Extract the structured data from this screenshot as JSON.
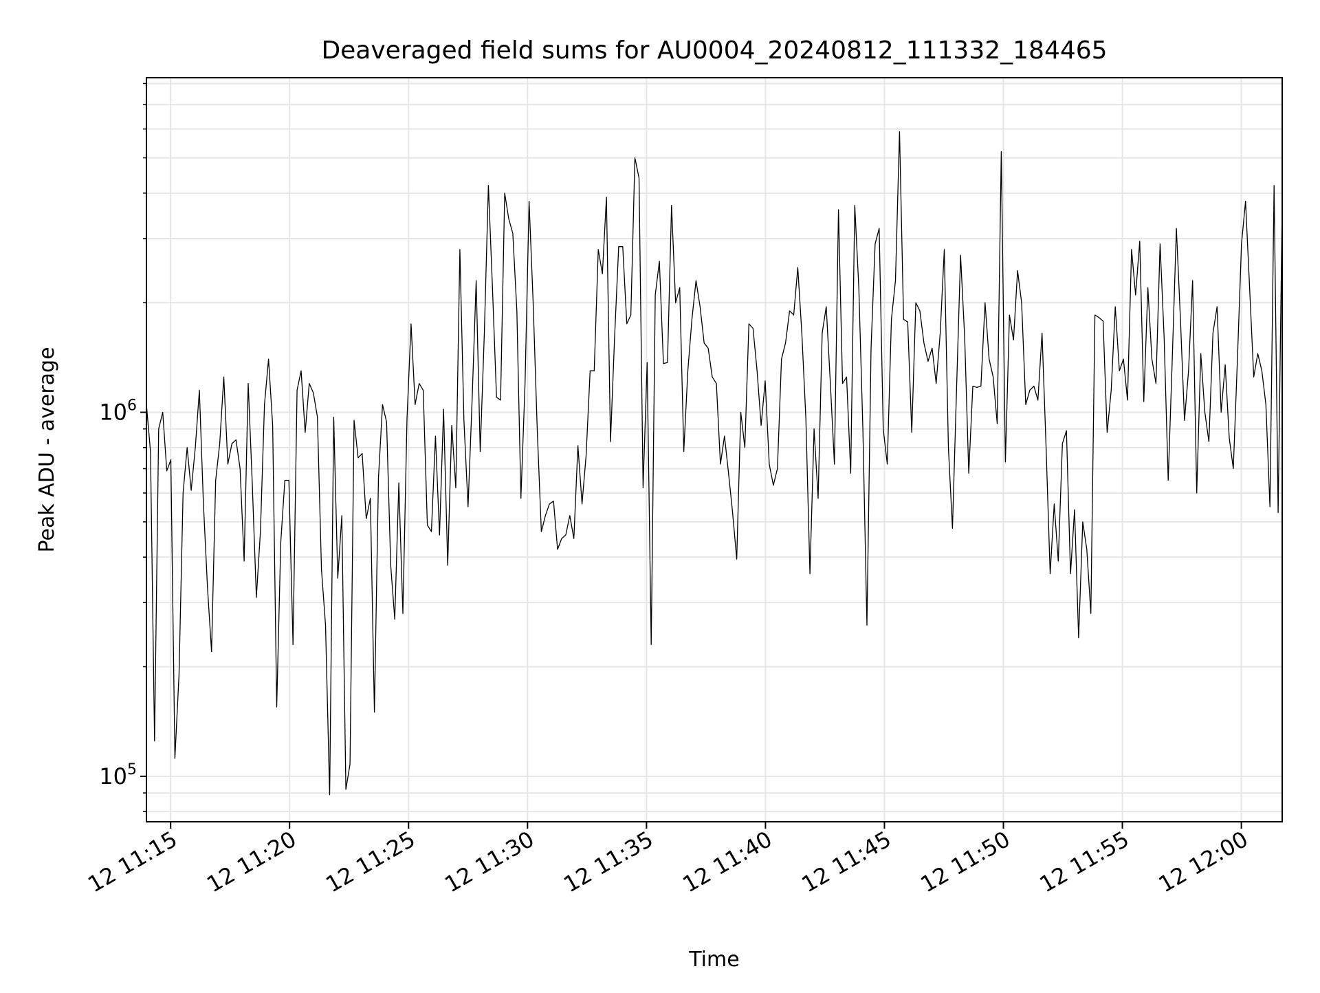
{
  "chart_data": {
    "type": "line",
    "title": "Deaveraged field sums for AU0004_20240812_111332_184465",
    "xlabel": "Time",
    "ylabel": "Peak ADU - average",
    "x_tick_labels": [
      "12 11:15",
      "12 11:20",
      "12 11:25",
      "12 11:30",
      "12 11:35",
      "12 11:40",
      "12 11:45",
      "12 11:50",
      "12 11:55",
      "12 12:00"
    ],
    "y_tick_labels": [
      {
        "value": 100000,
        "base": "10",
        "exp": "5"
      },
      {
        "value": 1000000,
        "base": "10",
        "exp": "6"
      }
    ],
    "yscale": "log",
    "xlim": [
      "2024-08-12 11:13:59",
      "2024-08-12 12:01:43"
    ],
    "ylim": [
      75000,
      8300000
    ],
    "grid": true,
    "line_color": "#000000",
    "grid_color": "#e6e6e6",
    "series": [
      {
        "x_start": "2024-08-12 11:13:59",
        "x_end": "2024-08-12 12:01:43",
        "y": [
          1050000,
          780000,
          125000,
          900000,
          1000000,
          690000,
          740000,
          112000,
          190000,
          600000,
          800000,
          610000,
          800000,
          1150000,
          560000,
          330000,
          220000,
          650000,
          820000,
          1250000,
          720000,
          820000,
          840000,
          700000,
          390000,
          1200000,
          640000,
          310000,
          470000,
          1050000,
          1400000,
          920000,
          155000,
          440000,
          650000,
          650000,
          230000,
          1150000,
          1300000,
          880000,
          1200000,
          1130000,
          970000,
          370000,
          260000,
          89000,
          970000,
          350000,
          520000,
          92000,
          108000,
          950000,
          750000,
          770000,
          510000,
          580000,
          150000,
          660000,
          1050000,
          940000,
          380000,
          270000,
          640000,
          280000,
          960000,
          1750000,
          1050000,
          1200000,
          1150000,
          490000,
          470000,
          860000,
          460000,
          1020000,
          380000,
          920000,
          620000,
          2800000,
          950000,
          550000,
          1080000,
          2300000,
          780000,
          1650000,
          4200000,
          2200000,
          1100000,
          1080000,
          4000000,
          3400000,
          3100000,
          1900000,
          580000,
          1200000,
          3800000,
          2000000,
          900000,
          470000,
          520000,
          560000,
          570000,
          420000,
          450000,
          460000,
          520000,
          450000,
          810000,
          560000,
          760000,
          1300000,
          1300000,
          2800000,
          2400000,
          3900000,
          830000,
          1600000,
          2850000,
          2850000,
          1750000,
          1850000,
          5000000,
          4400000,
          620000,
          1370000,
          230000,
          2100000,
          2600000,
          1360000,
          1370000,
          3700000,
          2000000,
          2200000,
          780000,
          1300000,
          1800000,
          2300000,
          1950000,
          1550000,
          1500000,
          1250000,
          1200000,
          720000,
          860000,
          680000,
          530000,
          395000,
          1000000,
          800000,
          1750000,
          1700000,
          1300000,
          920000,
          1220000,
          720000,
          630000,
          700000,
          1400000,
          1550000,
          1900000,
          1850000,
          2500000,
          1650000,
          960000,
          360000,
          900000,
          580000,
          1650000,
          1950000,
          1200000,
          720000,
          3600000,
          1200000,
          1250000,
          680000,
          3700000,
          2200000,
          900000,
          260000,
          1500000,
          2900000,
          3200000,
          900000,
          720000,
          1800000,
          2300000,
          5900000,
          1800000,
          1770000,
          880000,
          2000000,
          1900000,
          1550000,
          1380000,
          1500000,
          1200000,
          1650000,
          2800000,
          800000,
          480000,
          1150000,
          2700000,
          1600000,
          680000,
          1180000,
          1170000,
          1180000,
          2000000,
          1400000,
          1250000,
          930000,
          5200000,
          730000,
          1850000,
          1580000,
          2450000,
          2000000,
          1050000,
          1150000,
          1180000,
          1080000,
          1650000,
          800000,
          360000,
          560000,
          390000,
          820000,
          890000,
          360000,
          540000,
          240000,
          500000,
          420000,
          280000,
          1850000,
          1820000,
          1780000,
          880000,
          1150000,
          1950000,
          1300000,
          1400000,
          1080000,
          2800000,
          2100000,
          2950000,
          1070000,
          2200000,
          1400000,
          1200000,
          2900000,
          1600000,
          650000,
          1400000,
          3200000,
          1800000,
          950000,
          1300000,
          2300000,
          600000,
          1450000,
          1000000,
          830000,
          1650000,
          1950000,
          1000000,
          1350000,
          850000,
          700000,
          1400000,
          2900000,
          3800000,
          2200000,
          1250000,
          1450000,
          1300000,
          1050000,
          550000,
          4200000,
          530000,
          3700000
        ]
      }
    ]
  }
}
